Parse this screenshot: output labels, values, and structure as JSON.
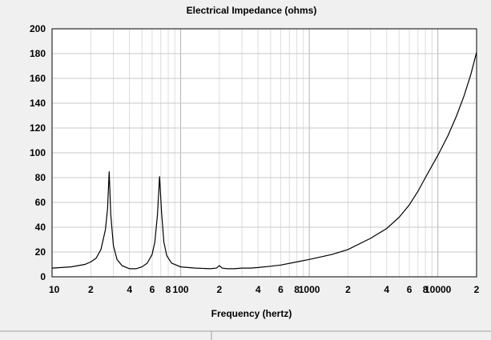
{
  "chart_data": {
    "type": "line",
    "title": "Electrical Impedance (ohms)",
    "xlabel": "Frequency (hertz)",
    "ylabel": "",
    "x_scale": "log",
    "xlim": [
      10,
      20000
    ],
    "ylim": [
      0,
      200
    ],
    "grid": true,
    "y_ticks": [
      0,
      20,
      40,
      60,
      80,
      100,
      120,
      140,
      160,
      180,
      200
    ],
    "x_ticks": [
      {
        "value": 10,
        "label": "10"
      },
      {
        "value": 20,
        "label": "2"
      },
      {
        "value": 40,
        "label": "4"
      },
      {
        "value": 60,
        "label": "6"
      },
      {
        "value": 80,
        "label": "8"
      },
      {
        "value": 100,
        "label": "100"
      },
      {
        "value": 200,
        "label": "2"
      },
      {
        "value": 400,
        "label": "4"
      },
      {
        "value": 600,
        "label": "6"
      },
      {
        "value": 800,
        "label": "8"
      },
      {
        "value": 1000,
        "label": "1000"
      },
      {
        "value": 2000,
        "label": "2"
      },
      {
        "value": 4000,
        "label": "4"
      },
      {
        "value": 6000,
        "label": "6"
      },
      {
        "value": 8000,
        "label": "8"
      },
      {
        "value": 10000,
        "label": "10000"
      },
      {
        "value": 20000,
        "label": "2"
      }
    ],
    "series": [
      {
        "x": [
          10,
          14,
          18,
          20,
          22,
          24,
          26,
          27,
          27.8,
          28.6,
          30,
          32,
          35,
          40,
          45,
          50,
          55,
          60,
          63,
          66,
          68.5,
          71,
          74,
          78,
          85,
          100,
          130,
          170,
          190,
          200,
          210,
          230,
          260,
          300,
          350,
          400,
          500,
          600,
          800,
          1000,
          1500,
          2000,
          3000,
          4000,
          5000,
          6000,
          7000,
          8000,
          10000,
          12000,
          14000,
          16000,
          18000,
          20000
        ],
        "y": [
          7,
          8,
          10,
          12,
          15,
          22,
          38,
          55,
          85,
          50,
          25,
          14,
          9,
          6.5,
          6.5,
          8,
          11,
          18,
          28,
          50,
          81,
          52,
          28,
          17,
          11,
          8,
          7,
          6.5,
          7,
          9,
          7,
          6.5,
          6.5,
          7,
          7,
          7.5,
          8.5,
          9.5,
          12,
          14,
          18,
          22,
          31,
          39,
          48,
          58,
          69,
          80,
          98,
          114,
          130,
          146,
          163,
          181
        ]
      }
    ]
  }
}
